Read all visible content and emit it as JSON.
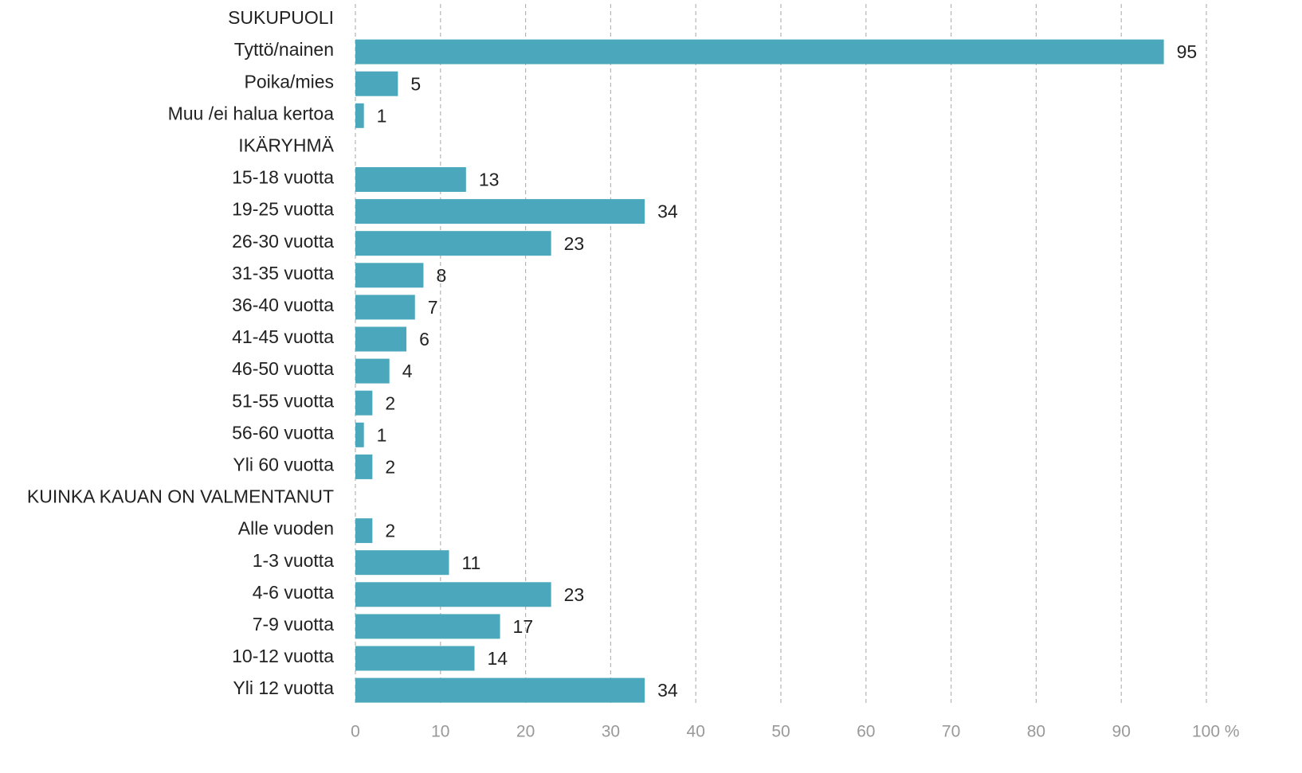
{
  "chart_data": {
    "type": "barh",
    "categories": [
      "SUKUPUOLI",
      "Tyttö/nainen",
      "Poika/mies",
      "Muu /ei halua kertoa",
      "IKÄRYHMÄ",
      "15-18 vuotta",
      "19-25 vuotta",
      "26-30 vuotta",
      "31-35 vuotta",
      "36-40 vuotta",
      "41-45 vuotta",
      "46-50 vuotta",
      "51-55 vuotta",
      "56-60 vuotta",
      "Yli 60 vuotta",
      "KUINKA KAUAN ON VALMENTANUT",
      "Alle vuoden",
      "1-3 vuotta",
      "4-6 vuotta",
      "7-9 vuotta",
      "10-12 vuotta",
      "Yli 12 vuotta"
    ],
    "values": [
      null,
      95,
      5,
      1,
      null,
      13,
      34,
      23,
      8,
      7,
      6,
      4,
      2,
      1,
      2,
      null,
      2,
      11,
      23,
      17,
      14,
      34
    ],
    "color": "#4ba8bc",
    "xlim": [
      0,
      100
    ],
    "xticks": [
      0,
      10,
      20,
      30,
      40,
      50,
      60,
      70,
      80,
      90,
      {
        "value": 100,
        "label": "100 %"
      }
    ],
    "grid": true
  }
}
